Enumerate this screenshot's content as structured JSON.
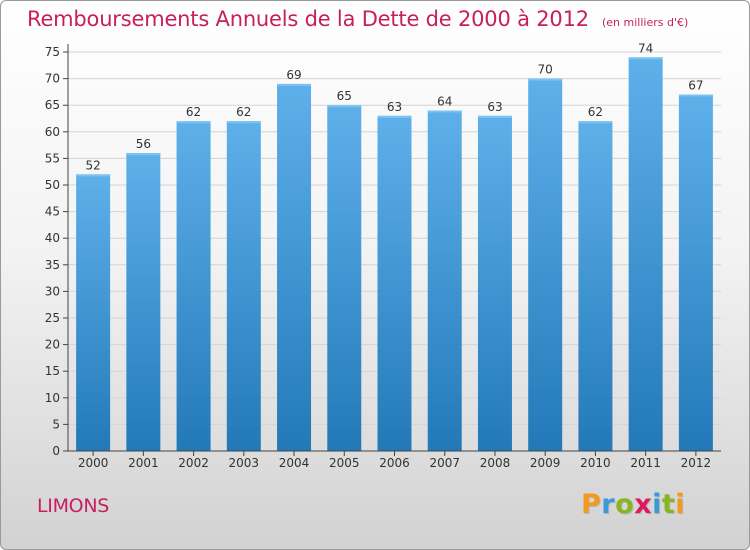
{
  "title": "Remboursements Annuels de la Dette de 2000 à 2012",
  "subtitle": "(en milliers d'€)",
  "commune": "LIMONS",
  "logo": {
    "letters": [
      "P",
      "r",
      "o",
      "x",
      "i",
      "t",
      "i"
    ],
    "colors": [
      "#f39a1d",
      "#3a9ad9",
      "#86b723",
      "#e0195e",
      "#3a9ad9",
      "#86b723",
      "#f39a1d"
    ]
  },
  "colors": {
    "accent": "#c71f5e",
    "bar_top": "#5eb0ea",
    "bar_bottom": "#2379b8",
    "grid": "#d4d4d4",
    "axis": "#444444"
  },
  "chart_data": {
    "type": "bar",
    "categories": [
      "2000",
      "2001",
      "2002",
      "2003",
      "2004",
      "2005",
      "2006",
      "2007",
      "2008",
      "2009",
      "2010",
      "2011",
      "2012"
    ],
    "values": [
      52,
      56,
      62,
      62,
      69,
      65,
      63,
      64,
      63,
      70,
      62,
      74,
      67
    ],
    "yticks": [
      0,
      5,
      10,
      15,
      20,
      25,
      30,
      35,
      40,
      45,
      50,
      55,
      60,
      65,
      70,
      75
    ],
    "ylim": [
      0,
      75
    ],
    "grid": true,
    "data_labels": true
  }
}
